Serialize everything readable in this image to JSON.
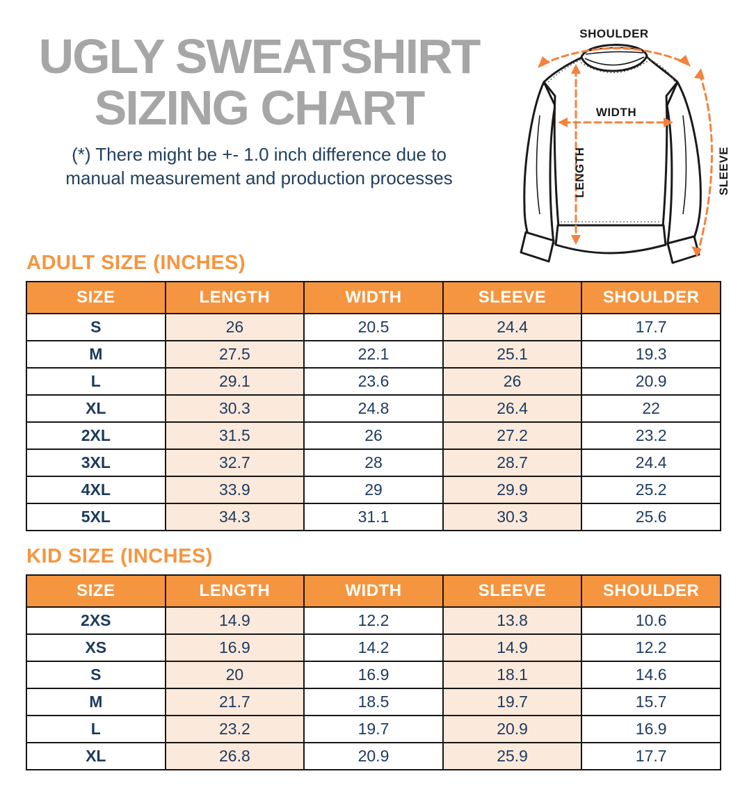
{
  "page": {
    "title_line1": "UGLY SWEATSHIRT",
    "title_line2": "SIZING CHART",
    "disclaimer_line1": "(*) There might be +- 1.0 inch difference due to",
    "disclaimer_line2": "manual measurement and production processes"
  },
  "colors": {
    "accent_orange": "#f6953f",
    "arrow_orange": "#f5813b",
    "navy_text": "#1c3a5e",
    "title_gray": "#a6a6a6",
    "peach_cell": "#fbe9db",
    "table_border": "#151515"
  },
  "diagram": {
    "labels": {
      "shoulder": "SHOULDER",
      "width": "WIDTH",
      "length": "LENGTH",
      "sleeve": "SLEEVE"
    }
  },
  "adult_table": {
    "heading": "ADULT SIZE (INCHES)",
    "columns": [
      "SIZE",
      "LENGTH",
      "WIDTH",
      "SLEEVE",
      "SHOULDER"
    ],
    "rows": [
      [
        "S",
        "26",
        "20.5",
        "24.4",
        "17.7"
      ],
      [
        "M",
        "27.5",
        "22.1",
        "25.1",
        "19.3"
      ],
      [
        "L",
        "29.1",
        "23.6",
        "26",
        "20.9"
      ],
      [
        "XL",
        "30.3",
        "24.8",
        "26.4",
        "22"
      ],
      [
        "2XL",
        "31.5",
        "26",
        "27.2",
        "23.2"
      ],
      [
        "3XL",
        "32.7",
        "28",
        "28.7",
        "24.4"
      ],
      [
        "4XL",
        "33.9",
        "29",
        "29.9",
        "25.2"
      ],
      [
        "5XL",
        "34.3",
        "31.1",
        "30.3",
        "25.6"
      ]
    ]
  },
  "kid_table": {
    "heading": "KID SIZE (INCHES)",
    "columns": [
      "SIZE",
      "LENGTH",
      "WIDTH",
      "SLEEVE",
      "SHOULDER"
    ],
    "rows": [
      [
        "2XS",
        "14.9",
        "12.2",
        "13.8",
        "10.6"
      ],
      [
        "XS",
        "16.9",
        "14.2",
        "14.9",
        "12.2"
      ],
      [
        "S",
        "20",
        "16.9",
        "18.1",
        "14.6"
      ],
      [
        "M",
        "21.7",
        "18.5",
        "19.7",
        "15.7"
      ],
      [
        "L",
        "23.2",
        "19.7",
        "20.9",
        "16.9"
      ],
      [
        "XL",
        "26.8",
        "20.9",
        "25.9",
        "17.7"
      ]
    ]
  }
}
